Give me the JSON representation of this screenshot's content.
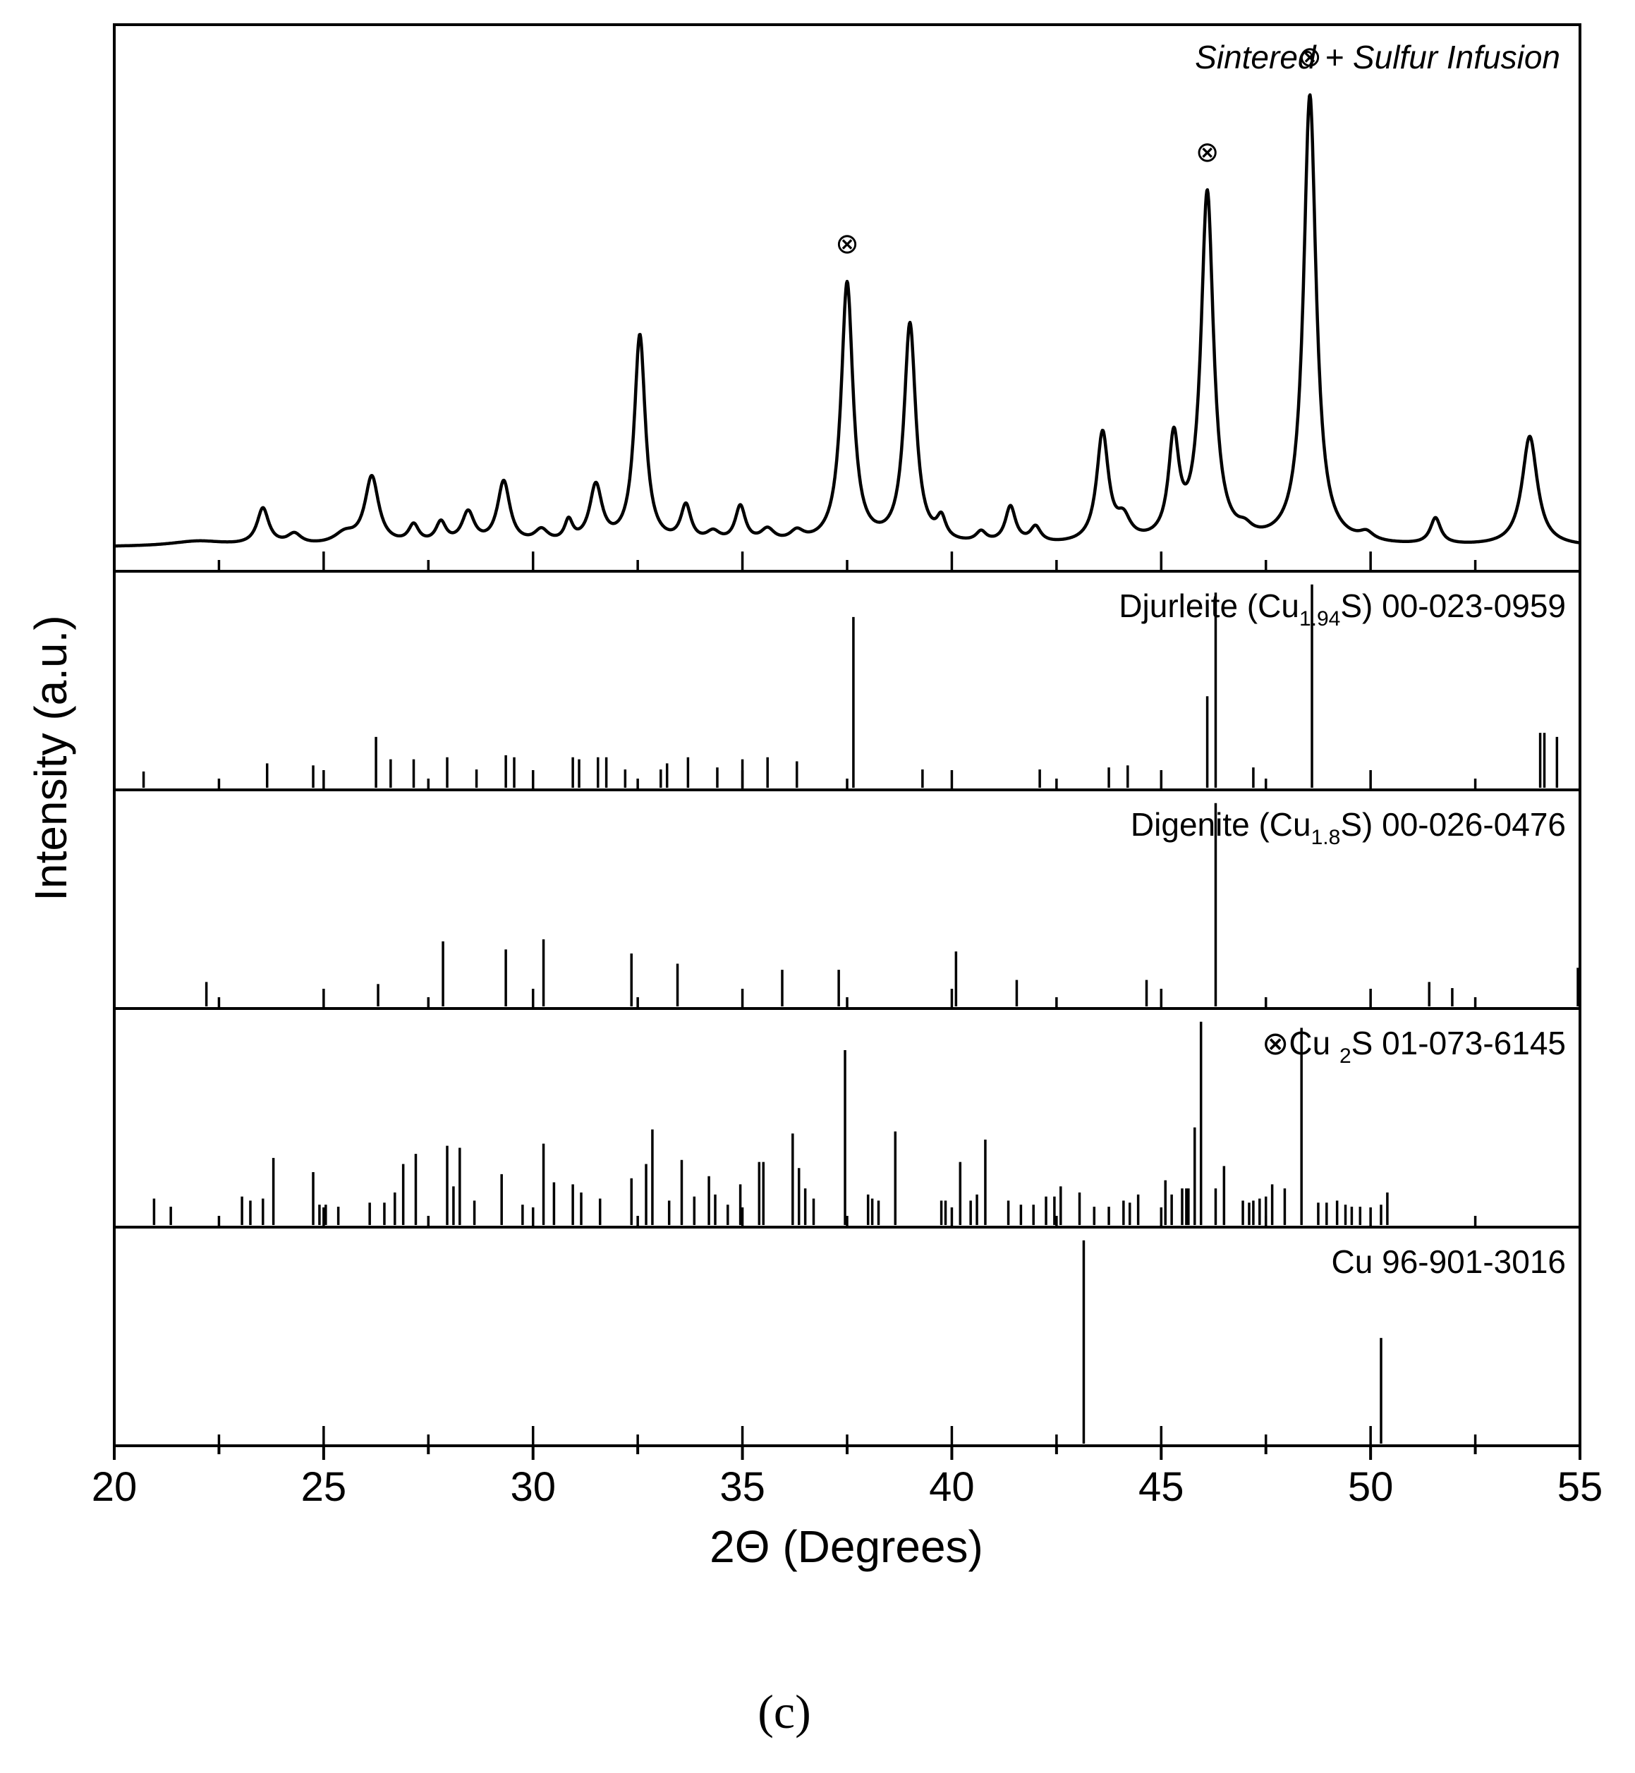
{
  "chart_data": {
    "type": "line",
    "xlabel": "2Θ (Degrees)",
    "ylabel": "Intensity (a.u.)",
    "xlim": [
      20,
      55
    ],
    "xticks": [
      20,
      25,
      30,
      35,
      40,
      45,
      50,
      55
    ],
    "caption": "(c)",
    "marker_symbol": "⊗",
    "panels": [
      {
        "id": "sample",
        "type": "line",
        "label": "Sintered + Sulfur Infusion",
        "baseline": 0.03,
        "peaks": [
          {
            "x": 22.0,
            "y": 0.01,
            "w": 0.8
          },
          {
            "x": 23.55,
            "y": 0.07,
            "w": 0.17
          },
          {
            "x": 24.3,
            "y": 0.02,
            "w": 0.2
          },
          {
            "x": 25.5,
            "y": 0.02,
            "w": 0.3
          },
          {
            "x": 26.15,
            "y": 0.13,
            "w": 0.2
          },
          {
            "x": 27.15,
            "y": 0.035,
            "w": 0.15
          },
          {
            "x": 27.8,
            "y": 0.04,
            "w": 0.15
          },
          {
            "x": 28.45,
            "y": 0.06,
            "w": 0.18
          },
          {
            "x": 29.3,
            "y": 0.12,
            "w": 0.18
          },
          {
            "x": 30.2,
            "y": 0.025,
            "w": 0.2
          },
          {
            "x": 30.85,
            "y": 0.04,
            "w": 0.12
          },
          {
            "x": 31.5,
            "y": 0.11,
            "w": 0.18
          },
          {
            "x": 32.55,
            "y": 0.4,
            "w": 0.16
          },
          {
            "x": 33.65,
            "y": 0.07,
            "w": 0.15
          },
          {
            "x": 34.3,
            "y": 0.02,
            "w": 0.2
          },
          {
            "x": 34.95,
            "y": 0.07,
            "w": 0.15
          },
          {
            "x": 35.6,
            "y": 0.025,
            "w": 0.2
          },
          {
            "x": 36.3,
            "y": 0.02,
            "w": 0.2
          },
          {
            "x": 37.5,
            "y": 0.5,
            "w": 0.17
          },
          {
            "x": 39.0,
            "y": 0.42,
            "w": 0.17
          },
          {
            "x": 39.75,
            "y": 0.04,
            "w": 0.13
          },
          {
            "x": 40.7,
            "y": 0.02,
            "w": 0.15
          },
          {
            "x": 41.4,
            "y": 0.07,
            "w": 0.15
          },
          {
            "x": 42.0,
            "y": 0.03,
            "w": 0.15
          },
          {
            "x": 43.6,
            "y": 0.21,
            "w": 0.17
          },
          {
            "x": 44.1,
            "y": 0.04,
            "w": 0.2
          },
          {
            "x": 45.3,
            "y": 0.19,
            "w": 0.15
          },
          {
            "x": 46.1,
            "y": 0.67,
            "w": 0.18
          },
          {
            "x": 47.0,
            "y": 0.015,
            "w": 0.2
          },
          {
            "x": 48.55,
            "y": 0.86,
            "w": 0.18
          },
          {
            "x": 49.9,
            "y": 0.015,
            "w": 0.2
          },
          {
            "x": 51.55,
            "y": 0.05,
            "w": 0.15
          },
          {
            "x": 53.8,
            "y": 0.21,
            "w": 0.22
          }
        ],
        "markers_x": [
          37.5,
          46.1,
          48.55
        ]
      },
      {
        "id": "djurleite",
        "type": "stick",
        "label": {
          "pre": "Djurleite (Cu",
          "sub": "1.94",
          "post": "S) 00-023-0959"
        },
        "sticks": [
          [
            20.7,
            0.08
          ],
          [
            23.65,
            0.12
          ],
          [
            24.75,
            0.11
          ],
          [
            26.25,
            0.25
          ],
          [
            26.6,
            0.14
          ],
          [
            27.15,
            0.14
          ],
          [
            27.95,
            0.15
          ],
          [
            28.65,
            0.09
          ],
          [
            29.35,
            0.16
          ],
          [
            29.55,
            0.15
          ],
          [
            30.95,
            0.15
          ],
          [
            31.1,
            0.14
          ],
          [
            31.55,
            0.15
          ],
          [
            31.75,
            0.15
          ],
          [
            32.2,
            0.09
          ],
          [
            33.05,
            0.09
          ],
          [
            33.2,
            0.12
          ],
          [
            33.7,
            0.15
          ],
          [
            34.4,
            0.1
          ],
          [
            35.0,
            0.14
          ],
          [
            35.6,
            0.15
          ],
          [
            36.3,
            0.13
          ],
          [
            37.65,
            0.84
          ],
          [
            39.3,
            0.09
          ],
          [
            42.1,
            0.09
          ],
          [
            43.75,
            0.1
          ],
          [
            44.2,
            0.11
          ],
          [
            46.1,
            0.45
          ],
          [
            46.3,
            0.96
          ],
          [
            47.2,
            0.1
          ],
          [
            48.6,
            1.0
          ],
          [
            54.05,
            0.27
          ],
          [
            54.15,
            0.27
          ],
          [
            54.45,
            0.25
          ]
        ]
      },
      {
        "id": "digenite",
        "type": "stick",
        "label": {
          "pre": "Digenite (Cu",
          "sub": "1.8",
          "post": "S) 00-026-0476"
        },
        "sticks": [
          [
            22.2,
            0.12
          ],
          [
            26.3,
            0.11
          ],
          [
            27.85,
            0.32
          ],
          [
            29.35,
            0.28
          ],
          [
            30.25,
            0.33
          ],
          [
            32.35,
            0.26
          ],
          [
            33.45,
            0.21
          ],
          [
            35.95,
            0.18
          ],
          [
            37.3,
            0.18
          ],
          [
            40.1,
            0.27
          ],
          [
            41.55,
            0.13
          ],
          [
            44.65,
            0.13
          ],
          [
            46.3,
            1.0
          ],
          [
            51.4,
            0.12
          ],
          [
            51.95,
            0.09
          ],
          [
            54.95,
            0.19
          ]
        ]
      },
      {
        "id": "cu2s",
        "type": "stick",
        "label": {
          "pre": "⊗Cu ",
          "sub": "2",
          "post": "S 01-073-6145"
        },
        "sticks": [
          [
            20.95,
            0.13
          ],
          [
            21.35,
            0.09
          ],
          [
            23.05,
            0.14
          ],
          [
            23.25,
            0.12
          ],
          [
            23.55,
            0.13
          ],
          [
            23.8,
            0.33
          ],
          [
            24.75,
            0.26
          ],
          [
            24.9,
            0.1
          ],
          [
            25.05,
            0.1
          ],
          [
            25.35,
            0.09
          ],
          [
            26.1,
            0.11
          ],
          [
            26.45,
            0.11
          ],
          [
            26.7,
            0.16
          ],
          [
            26.9,
            0.3
          ],
          [
            27.2,
            0.35
          ],
          [
            27.95,
            0.39
          ],
          [
            28.1,
            0.19
          ],
          [
            28.25,
            0.38
          ],
          [
            28.6,
            0.12
          ],
          [
            29.25,
            0.25
          ],
          [
            29.75,
            0.1
          ],
          [
            30.25,
            0.4
          ],
          [
            30.5,
            0.21
          ],
          [
            30.95,
            0.2
          ],
          [
            31.15,
            0.16
          ],
          [
            31.6,
            0.13
          ],
          [
            32.35,
            0.23
          ],
          [
            32.7,
            0.3
          ],
          [
            32.85,
            0.47
          ],
          [
            33.25,
            0.12
          ],
          [
            33.55,
            0.32
          ],
          [
            33.85,
            0.14
          ],
          [
            34.2,
            0.24
          ],
          [
            34.35,
            0.15
          ],
          [
            34.65,
            0.1
          ],
          [
            34.95,
            0.2
          ],
          [
            35.4,
            0.31
          ],
          [
            35.5,
            0.31
          ],
          [
            36.2,
            0.45
          ],
          [
            36.35,
            0.28
          ],
          [
            36.5,
            0.18
          ],
          [
            36.7,
            0.13
          ],
          [
            37.45,
            0.86
          ],
          [
            38.0,
            0.15
          ],
          [
            38.1,
            0.13
          ],
          [
            38.25,
            0.12
          ],
          [
            38.65,
            0.46
          ],
          [
            39.75,
            0.12
          ],
          [
            39.85,
            0.12
          ],
          [
            40.2,
            0.31
          ],
          [
            40.45,
            0.12
          ],
          [
            40.6,
            0.15
          ],
          [
            40.8,
            0.42
          ],
          [
            41.35,
            0.12
          ],
          [
            41.65,
            0.1
          ],
          [
            41.95,
            0.1
          ],
          [
            42.25,
            0.14
          ],
          [
            42.45,
            0.14
          ],
          [
            42.6,
            0.19
          ],
          [
            43.05,
            0.16
          ],
          [
            43.4,
            0.09
          ],
          [
            43.75,
            0.09
          ],
          [
            44.1,
            0.12
          ],
          [
            44.25,
            0.11
          ],
          [
            44.45,
            0.15
          ],
          [
            45.1,
            0.22
          ],
          [
            45.25,
            0.15
          ],
          [
            45.5,
            0.18
          ],
          [
            45.6,
            0.18
          ],
          [
            45.65,
            0.18
          ],
          [
            45.8,
            0.48
          ],
          [
            45.95,
            1.0
          ],
          [
            46.3,
            0.18
          ],
          [
            46.5,
            0.29
          ],
          [
            46.95,
            0.12
          ],
          [
            47.1,
            0.11
          ],
          [
            47.2,
            0.12
          ],
          [
            47.35,
            0.13
          ],
          [
            47.5,
            0.14
          ],
          [
            47.65,
            0.2
          ],
          [
            47.95,
            0.18
          ],
          [
            48.35,
            0.97
          ],
          [
            48.75,
            0.11
          ],
          [
            48.95,
            0.11
          ],
          [
            49.2,
            0.12
          ],
          [
            49.4,
            0.1
          ],
          [
            49.55,
            0.09
          ],
          [
            49.75,
            0.09
          ],
          [
            50.25,
            0.1
          ],
          [
            50.4,
            0.16
          ]
        ]
      },
      {
        "id": "cu",
        "type": "stick",
        "label": {
          "pre": "Cu 96-901-3016",
          "sub": "",
          "post": ""
        },
        "sticks": [
          [
            43.15,
            1.0
          ],
          [
            50.25,
            0.52
          ]
        ]
      }
    ]
  }
}
